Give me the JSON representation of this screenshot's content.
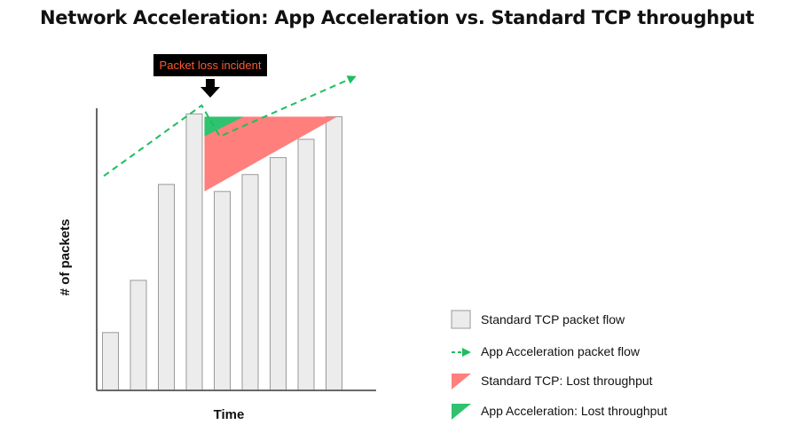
{
  "chart_data": {
    "type": "bar",
    "title": "Network Acceleration: App Acceleration vs. Standard TCP throughput",
    "xlabel": "Time",
    "ylabel": "# of packets",
    "ylim": [
      0,
      100
    ],
    "categories": [
      "",
      "",
      "",
      "",
      "",
      "",
      "",
      "",
      ""
    ],
    "series": [
      {
        "name": "Standard TCP packet flow",
        "values": [
          20.5,
          39,
          73,
          98,
          70.5,
          76.5,
          82.5,
          89,
          97
        ]
      }
    ],
    "app_acceleration_line": {
      "name": "App Acceleration packet flow",
      "points": [
        [
          0.05,
          76
        ],
        [
          3.55,
          101
        ],
        [
          4.2,
          90
        ],
        [
          9,
          111
        ]
      ]
    },
    "lost_throughput_standard": {
      "name": "Standard TCP: Lost throughput",
      "points": [
        [
          3.65,
          97
        ],
        [
          8.4,
          97
        ],
        [
          3.65,
          70.5
        ]
      ]
    },
    "lost_throughput_app": {
      "name": "App Acceleration: Lost throughput",
      "points": [
        [
          3.65,
          97
        ],
        [
          5.05,
          97
        ],
        [
          3.65,
          90
        ]
      ]
    },
    "annotation": {
      "text": "Packet loss incident",
      "x": 3.72
    },
    "grid": false,
    "legend_position": "bottom-right",
    "colors": {
      "bar_fill": "#ececec",
      "bar_stroke": "#9a9a9a",
      "app_line": "#1dbe5e",
      "standard_loss": "#ff7f7d",
      "app_loss": "#2fc26f",
      "annotation_bg": "#000000",
      "annotation_text": "#ff5a32"
    }
  }
}
